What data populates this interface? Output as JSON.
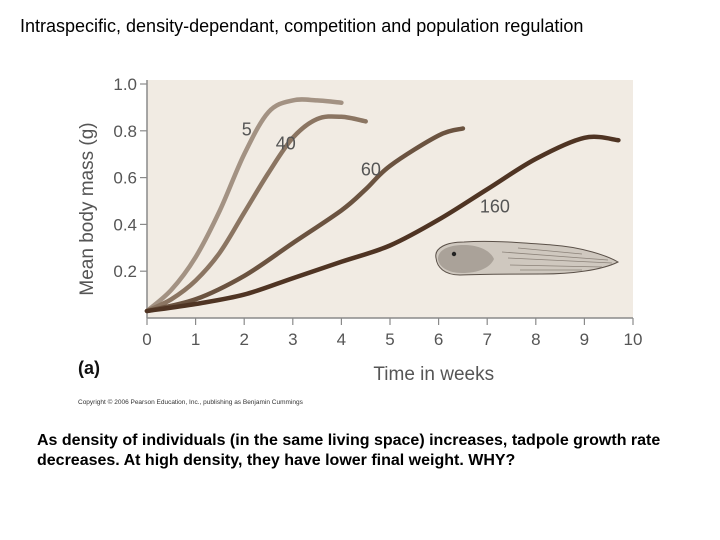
{
  "slide": {
    "title": "Intraspecific, density-dependant, competition and population regulation",
    "caption": "As density of individuals (in the same living space) increases, tadpole growth rate decreases.   At high density, they have lower final weight. WHY?",
    "panel_label": "(a)",
    "copyright": "Copyright © 2006 Pearson Education, Inc., publishing as Benjamin Cummings"
  },
  "chart_data": {
    "type": "line",
    "title": "",
    "xlabel": "Time in weeks",
    "ylabel": "Mean body mass (g)",
    "xlim": [
      0,
      10
    ],
    "ylim": [
      0,
      1.0
    ],
    "x_ticks": [
      "0",
      "1",
      "2",
      "3",
      "4",
      "5",
      "6",
      "7",
      "8",
      "9",
      "10"
    ],
    "y_ticks": [
      "0.2",
      "0.4",
      "0.6",
      "0.8",
      "1.0"
    ],
    "y_tick_values": [
      0.2,
      0.4,
      0.6,
      0.8,
      1.0
    ],
    "series": [
      {
        "name": "5",
        "color": "#a39283",
        "x": [
          0,
          0.5,
          1,
          1.5,
          2,
          2.5,
          3,
          3.5,
          4
        ],
        "y": [
          0.03,
          0.12,
          0.26,
          0.46,
          0.7,
          0.88,
          0.93,
          0.93,
          0.92
        ]
      },
      {
        "name": "40",
        "color": "#8b7562",
        "x": [
          0,
          0.5,
          1,
          1.5,
          2,
          2.5,
          3,
          3.5,
          4,
          4.5
        ],
        "y": [
          0.03,
          0.08,
          0.16,
          0.28,
          0.45,
          0.62,
          0.77,
          0.85,
          0.86,
          0.84
        ]
      },
      {
        "name": "60",
        "color": "#6b5340",
        "x": [
          0,
          1,
          2,
          3,
          4,
          4.5,
          5,
          6,
          6.5
        ],
        "y": [
          0.03,
          0.08,
          0.18,
          0.32,
          0.46,
          0.55,
          0.65,
          0.78,
          0.81
        ]
      },
      {
        "name": "160",
        "color": "#4f3423",
        "x": [
          0,
          1,
          2,
          3,
          4,
          5,
          6,
          7,
          8,
          9,
          9.7
        ],
        "y": [
          0.03,
          0.06,
          0.1,
          0.17,
          0.24,
          0.31,
          0.42,
          0.55,
          0.68,
          0.77,
          0.76
        ]
      }
    ],
    "series_label_positions": [
      {
        "name": "5",
        "x": 1.95,
        "y": 0.78
      },
      {
        "name": "40",
        "x": 2.65,
        "y": 0.72
      },
      {
        "name": "60",
        "x": 4.4,
        "y": 0.61
      },
      {
        "name": "160",
        "x": 6.85,
        "y": 0.45
      }
    ],
    "plot_background": "#f1ebe3",
    "grid": false,
    "legend": "none",
    "illustration": "tadpole"
  }
}
